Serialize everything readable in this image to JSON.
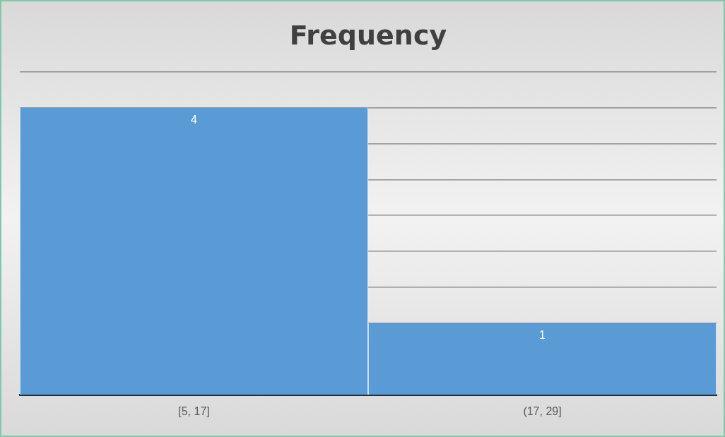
{
  "chart_data": {
    "type": "bar",
    "title": "Frequency",
    "categories": [
      "[5, 17]",
      "(17, 29]"
    ],
    "values": [
      4,
      1
    ],
    "color": "#5b9bd5",
    "ylim": [
      0,
      4.5
    ],
    "grid": "y",
    "tick_labels": "x",
    "data_labels": true
  }
}
